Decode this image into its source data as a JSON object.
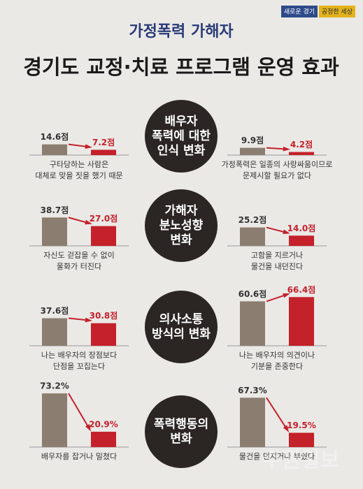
{
  "header": {
    "badges": [
      "새로운 경기",
      "공정한 세상"
    ],
    "title_1": "가정폭력 가해자",
    "title_2": "경기도 교정·치료 프로그램 운영 효과"
  },
  "sections": [
    {
      "label": [
        "배우자",
        "폭력에 대한",
        "인식 변화"
      ]
    },
    {
      "label": [
        "가해자",
        "분노성향",
        "변화"
      ]
    },
    {
      "label": [
        "의사소통",
        "방식의 변화"
      ]
    },
    {
      "label": [
        "폭력행동의",
        "변화"
      ]
    }
  ],
  "watermark": "수원일보",
  "chart_data": [
    {
      "type": "bar",
      "categories": [
        null,
        null
      ],
      "values": [
        14.6,
        7.2
      ],
      "value_labels": [
        "14.6점",
        "7.2점"
      ],
      "colors": [
        "#8b7d6f",
        "#c4212b"
      ],
      "caption": [
        "구타당하는 사람은",
        "대체로 맞을 짓을 했기 때문"
      ]
    },
    {
      "type": "bar",
      "categories": [
        null,
        null
      ],
      "values": [
        9.9,
        4.2
      ],
      "value_labels": [
        "9.9점",
        "4.2점"
      ],
      "colors": [
        "#8b7d6f",
        "#c4212b"
      ],
      "caption": [
        "가정폭력은 일종의 사랑싸움이므로",
        "문제시할 필요가 없다"
      ]
    },
    {
      "type": "bar",
      "categories": [
        null,
        null
      ],
      "values": [
        38.7,
        27.0
      ],
      "value_labels": [
        "38.7점",
        "27.0점"
      ],
      "colors": [
        "#8b7d6f",
        "#c4212b"
      ],
      "caption": [
        "자신도 걷잡을 수 없이",
        "울화가 터진다"
      ]
    },
    {
      "type": "bar",
      "categories": [
        null,
        null
      ],
      "values": [
        25.2,
        14.0
      ],
      "value_labels": [
        "25.2점",
        "14.0점"
      ],
      "colors": [
        "#8b7d6f",
        "#c4212b"
      ],
      "caption": [
        "고함을 지르거나",
        "물건을 내던진다"
      ]
    },
    {
      "type": "bar",
      "categories": [
        null,
        null
      ],
      "values": [
        37.6,
        30.8
      ],
      "value_labels": [
        "37.6점",
        "30.8점"
      ],
      "colors": [
        "#8b7d6f",
        "#c4212b"
      ],
      "caption": [
        "나는 배우자의 장점보다",
        "단점을 꼬집는다"
      ]
    },
    {
      "type": "bar",
      "categories": [
        null,
        null
      ],
      "values": [
        60.6,
        66.4
      ],
      "value_labels": [
        "60.6점",
        "66.4점"
      ],
      "colors": [
        "#8b7d6f",
        "#c4212b"
      ],
      "caption": [
        "나는 배우자의 의견이나",
        "기분을 존중한다"
      ]
    },
    {
      "type": "bar",
      "categories": [
        null,
        null
      ],
      "values": [
        73.2,
        20.9
      ],
      "value_labels": [
        "73.2%",
        "20.9%"
      ],
      "colors": [
        "#8b7d6f",
        "#c4212b"
      ],
      "caption": [
        "배우자를 잡거나 밀쳤다"
      ]
    },
    {
      "type": "bar",
      "categories": [
        null,
        null
      ],
      "values": [
        67.3,
        19.5
      ],
      "value_labels": [
        "67.3%",
        "19.5%"
      ],
      "colors": [
        "#8b7d6f",
        "#c4212b"
      ],
      "caption": [
        "물건을 던지거나 부쉈다"
      ]
    }
  ]
}
